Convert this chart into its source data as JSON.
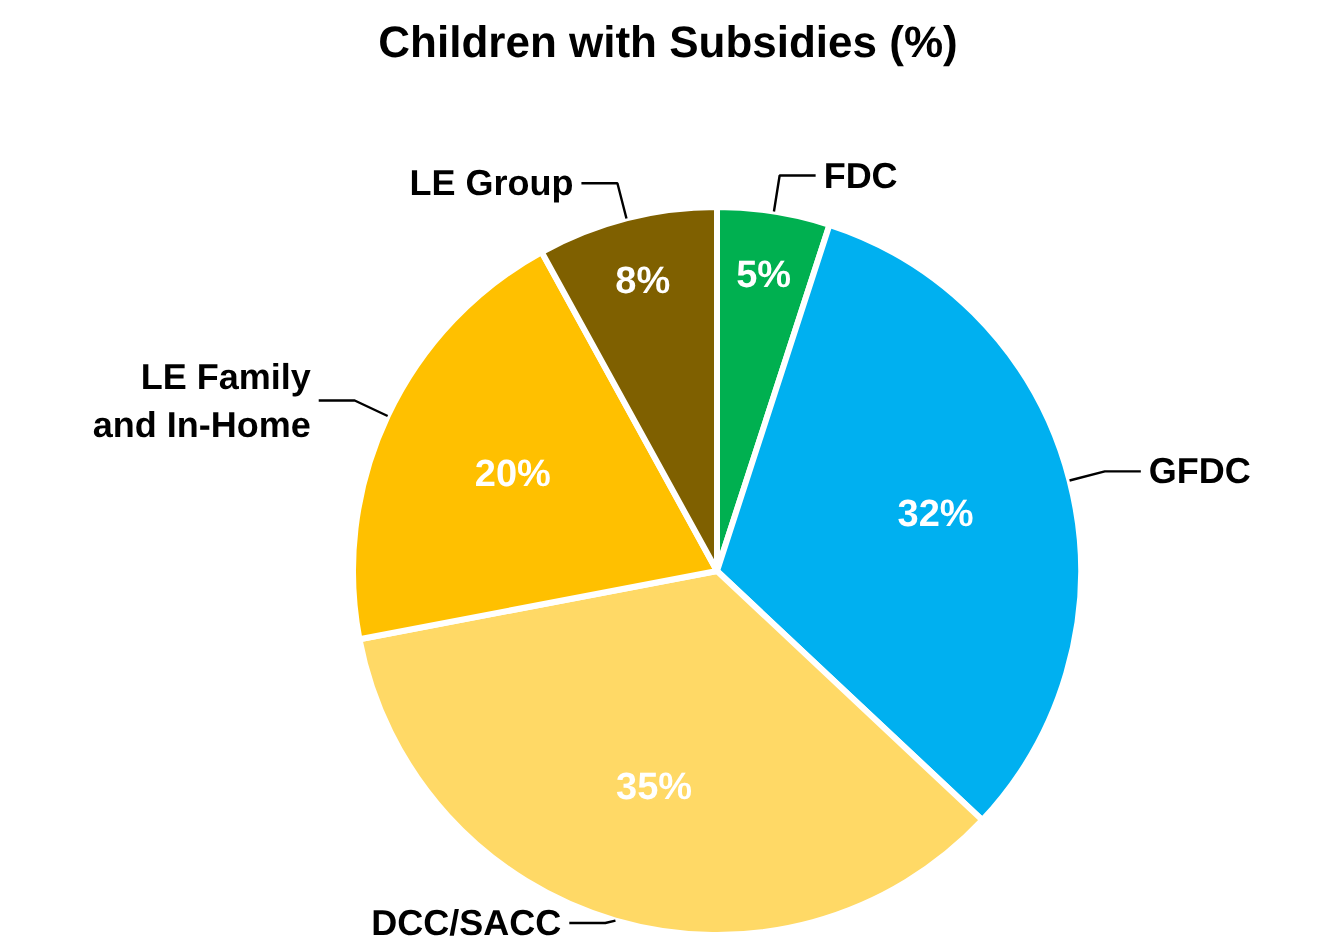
{
  "chart_data": {
    "type": "pie",
    "title": "Children with Subsidies (%)",
    "categories": [
      "FDC",
      "GFDC",
      "DCC/SACC",
      "LE Family and In-Home",
      "LE Group"
    ],
    "values": [
      5,
      32,
      35,
      20,
      8
    ],
    "value_labels": [
      "5%",
      "32%",
      "35%",
      "20%",
      "8%"
    ],
    "colors": [
      "#00b050",
      "#00b0f0",
      "#ffd966",
      "#ffc000",
      "#7f6000"
    ]
  }
}
